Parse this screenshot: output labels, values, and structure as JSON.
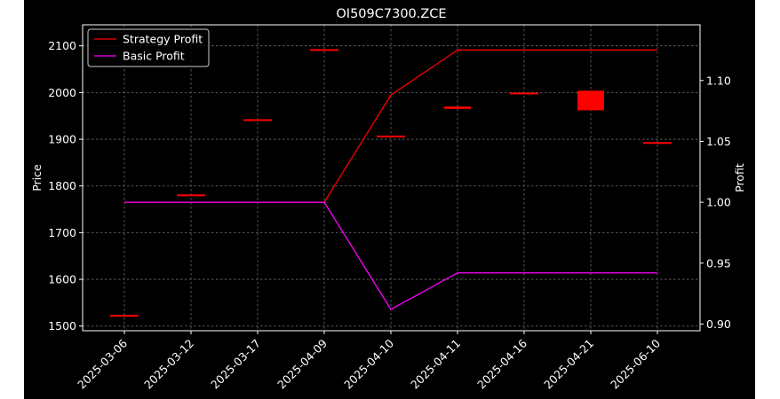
{
  "chart_data": {
    "type": "line",
    "title": "OI509C7300.ZCE",
    "xlabel": "",
    "ylabel_left": "Price",
    "ylabel_right": "Profit",
    "categories": [
      "2025-03-06",
      "2025-03-12",
      "2025-03-17",
      "2025-04-09",
      "2025-04-10",
      "2025-04-11",
      "2025-04-16",
      "2025-04-21",
      "2025-06-10"
    ],
    "ylim_left": [
      1490,
      2145
    ],
    "yticks_left": [
      1500,
      1600,
      1700,
      1800,
      1900,
      2000,
      2100
    ],
    "ylim_right": [
      0.8945,
      1.1457
    ],
    "yticks_right": [
      0.9,
      0.95,
      1.0,
      1.05,
      1.1
    ],
    "ytick_labels_right": [
      "0.90",
      "0.95",
      "1.00",
      "1.05",
      "1.10"
    ],
    "grid": true,
    "legend_position": "upper left",
    "series": [
      {
        "name": "Strategy Profit",
        "axis": "right",
        "color": "#ff0000",
        "values": [
          1.0,
          1.0,
          1.0,
          1.0,
          1.088,
          1.125,
          1.125,
          1.125,
          1.125
        ]
      },
      {
        "name": "Basic Profit",
        "axis": "right",
        "color": "#ff00ff",
        "values": [
          1.0,
          1.0,
          1.0,
          1.0,
          0.912,
          0.942,
          0.942,
          0.942,
          0.942
        ]
      }
    ],
    "candles": {
      "axis": "left",
      "color": "#ff0000",
      "ohlc": [
        {
          "date": "2025-03-06",
          "open": 1522,
          "close": 1522
        },
        {
          "date": "2025-03-12",
          "open": 1780,
          "close": 1780
        },
        {
          "date": "2025-03-17",
          "open": 1941,
          "close": 1941
        },
        {
          "date": "2025-04-09",
          "open": 2091,
          "close": 2091
        },
        {
          "date": "2025-04-10",
          "open": 1906,
          "close": 1906
        },
        {
          "date": "2025-04-11",
          "open": 1965,
          "close": 1970
        },
        {
          "date": "2025-04-16",
          "open": 1998,
          "close": 1998
        },
        {
          "date": "2025-04-21",
          "open": 1962,
          "close": 2004
        },
        {
          "date": "2025-06-10",
          "open": 1892,
          "close": 1892
        }
      ]
    }
  }
}
